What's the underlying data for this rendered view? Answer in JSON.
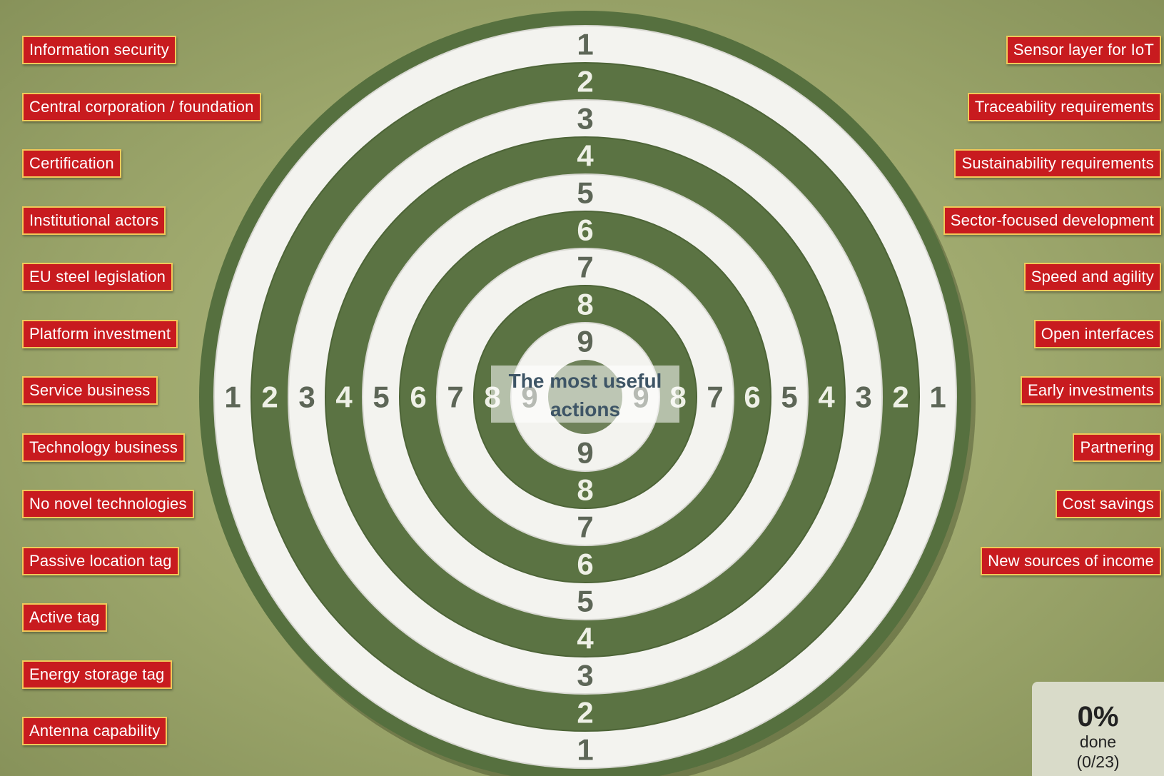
{
  "left_labels": [
    "Information security",
    "Central corporation / foundation",
    "Certification",
    "Institutional actors",
    "EU steel legislation",
    "Platform investment",
    "Service business",
    "Technology business",
    "No novel technologies",
    "Passive location tag",
    "Active tag",
    "Energy storage tag",
    "Antenna capability"
  ],
  "right_labels": [
    "Sensor layer for IoT",
    "Traceability requirements",
    "Sustainability requirements",
    "Sector-focused development",
    "Speed and agility",
    "Open interfaces",
    "Early investments",
    "Partnering",
    "Cost savings",
    "New sources of income"
  ],
  "target": {
    "rings": [
      1,
      2,
      3,
      4,
      5,
      6,
      7,
      8,
      9
    ],
    "center_text": "The most useful actions"
  },
  "progress": {
    "percent": "0%",
    "label": "done",
    "count": "(0/23)"
  }
}
